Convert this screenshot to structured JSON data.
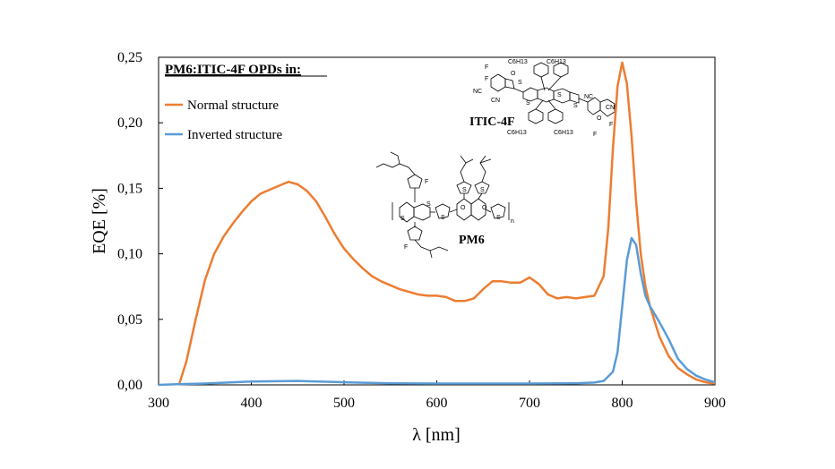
{
  "chart_data": {
    "type": "line",
    "title": "",
    "xlabel": "λ [nm]",
    "ylabel": "EQE [%]",
    "xlim": [
      300,
      900
    ],
    "ylim": [
      0,
      0.25
    ],
    "x_ticks": [
      "300",
      "400",
      "500",
      "600",
      "700",
      "800",
      "900"
    ],
    "y_ticks": [
      "0,00",
      "0,05",
      "0,10",
      "0,15",
      "0,20",
      "0,25"
    ],
    "legend_title": "PM6:ITIC-4F OPDs in:",
    "legend_position": "top-left",
    "grid": false,
    "series": [
      {
        "name": "Normal structure",
        "color": "#ED7D31",
        "x": [
          322,
          330,
          340,
          350,
          360,
          370,
          380,
          390,
          400,
          410,
          420,
          430,
          440,
          450,
          460,
          470,
          480,
          490,
          500,
          510,
          520,
          530,
          540,
          550,
          560,
          570,
          580,
          590,
          600,
          610,
          620,
          630,
          640,
          650,
          660,
          670,
          680,
          690,
          700,
          710,
          720,
          730,
          740,
          750,
          760,
          770,
          780,
          785,
          790,
          795,
          800,
          805,
          810,
          815,
          820,
          825,
          830,
          840,
          850,
          860,
          870,
          880,
          890,
          900
        ],
        "y": [
          0.0,
          0.018,
          0.05,
          0.08,
          0.1,
          0.113,
          0.123,
          0.132,
          0.14,
          0.146,
          0.149,
          0.152,
          0.155,
          0.153,
          0.148,
          0.14,
          0.128,
          0.115,
          0.104,
          0.096,
          0.089,
          0.083,
          0.079,
          0.076,
          0.073,
          0.071,
          0.069,
          0.068,
          0.068,
          0.067,
          0.064,
          0.064,
          0.066,
          0.073,
          0.079,
          0.079,
          0.078,
          0.078,
          0.082,
          0.077,
          0.069,
          0.066,
          0.067,
          0.066,
          0.067,
          0.068,
          0.083,
          0.12,
          0.18,
          0.228,
          0.246,
          0.23,
          0.19,
          0.14,
          0.1,
          0.075,
          0.06,
          0.037,
          0.022,
          0.013,
          0.008,
          0.004,
          0.002,
          0.001
        ]
      },
      {
        "name": "Inverted structure",
        "color": "#5B9BD5",
        "x": [
          300,
          320,
          350,
          400,
          450,
          500,
          550,
          600,
          650,
          700,
          750,
          770,
          780,
          790,
          795,
          800,
          805,
          810,
          815,
          820,
          825,
          830,
          840,
          850,
          860,
          870,
          880,
          890,
          900
        ],
        "y": [
          0.0,
          0.0005,
          0.001,
          0.0025,
          0.003,
          0.002,
          0.0012,
          0.001,
          0.001,
          0.001,
          0.0012,
          0.0018,
          0.003,
          0.01,
          0.025,
          0.06,
          0.095,
          0.112,
          0.107,
          0.085,
          0.068,
          0.06,
          0.048,
          0.035,
          0.02,
          0.012,
          0.007,
          0.004,
          0.002
        ]
      }
    ]
  },
  "molecules": {
    "itic": {
      "name": "ITIC-4F",
      "atoms": [
        "C6H13",
        "C6H13",
        "C6H13",
        "C6H13",
        "NC",
        "CN",
        "NC",
        "CN",
        "F",
        "F",
        "F",
        "F",
        "S",
        "S",
        "S",
        "S",
        "O",
        "O"
      ]
    },
    "pm6": {
      "name": "PM6",
      "atoms": [
        "F",
        "F",
        "S",
        "S",
        "S",
        "S",
        "S",
        "S",
        "O",
        "O",
        "n"
      ]
    }
  }
}
